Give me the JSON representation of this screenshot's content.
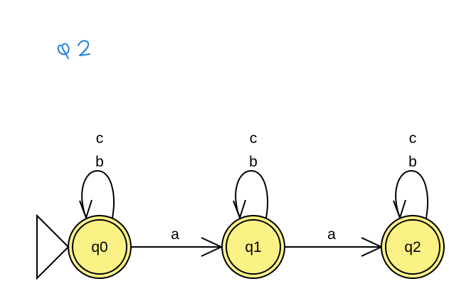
{
  "annotation": {
    "text": "Q2",
    "color": "#1e7fd6"
  },
  "colors": {
    "state_fill": "#fbf286",
    "state_stroke": "#000000",
    "edge_stroke": "#000000",
    "background": "#ffffff"
  },
  "automaton": {
    "start_state": "q0",
    "states": [
      {
        "id": "q0",
        "label": "q0",
        "final": true
      },
      {
        "id": "q1",
        "label": "q1",
        "final": true
      },
      {
        "id": "q2",
        "label": "q2",
        "final": true
      }
    ],
    "transitions": [
      {
        "from": "q0",
        "to": "q0",
        "labels": [
          "c",
          "b"
        ]
      },
      {
        "from": "q1",
        "to": "q1",
        "labels": [
          "c",
          "b"
        ]
      },
      {
        "from": "q2",
        "to": "q2",
        "labels": [
          "c",
          "b"
        ]
      },
      {
        "from": "q0",
        "to": "q1",
        "labels": [
          "a"
        ]
      },
      {
        "from": "q1",
        "to": "q2",
        "labels": [
          "a"
        ]
      }
    ]
  }
}
